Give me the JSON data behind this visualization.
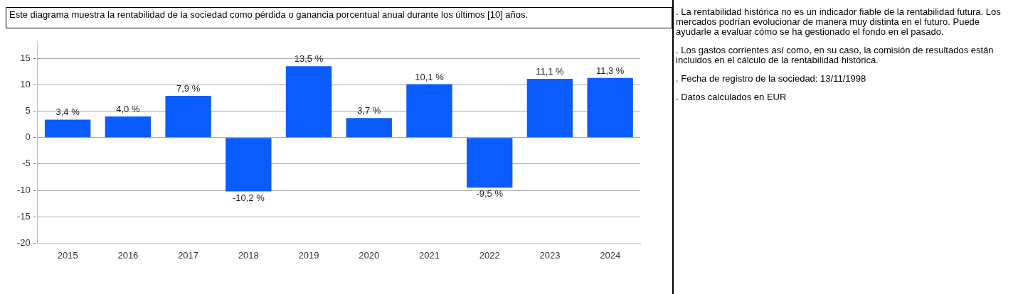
{
  "chart_data": {
    "type": "bar",
    "title": "Este diagrama muestra la rentabilidad de la sociedad como pérdida o ganancia porcentual anual durante los últimos [10] años.",
    "categories": [
      "2015",
      "2016",
      "2017",
      "2018",
      "2019",
      "2020",
      "2021",
      "2022",
      "2023",
      "2024"
    ],
    "series": [
      {
        "color": "#0a5cff",
        "values": [
          3.4,
          4.0,
          7.9,
          -10.2,
          13.5,
          3.7,
          10.1,
          -9.5,
          11.1,
          11.3
        ],
        "value_labels": [
          "3,4 %",
          "4,0 %",
          "7,9 %",
          "-10,2 %",
          "13,5 %",
          "3,7 %",
          "10,1 %",
          "-9,5 %",
          "11,1 %",
          "11,3 %"
        ]
      }
    ],
    "ylim": [
      -20,
      18
    ],
    "yticks": [
      -20,
      -15,
      -10,
      -5,
      0,
      5,
      10,
      15
    ],
    "grid": "y",
    "legend": false,
    "annotations": [
      ". La rentabilidad histórica no es un indicador fiable de la rentabilidad futura. Los mercados podrían evolucionar de manera muy distinta en el futuro. Puede ayudarle a evaluar cómo se ha gestionado el fondo en el pasado.",
      ". Los gastos corrientes así como, en su caso, la comisión de resultados están incluidos en el cálculo de la rentabilidad histórica.",
      ". Fecha de registro de la sociedad: 13/11/1998",
      ". Datos calculados en EUR"
    ]
  }
}
